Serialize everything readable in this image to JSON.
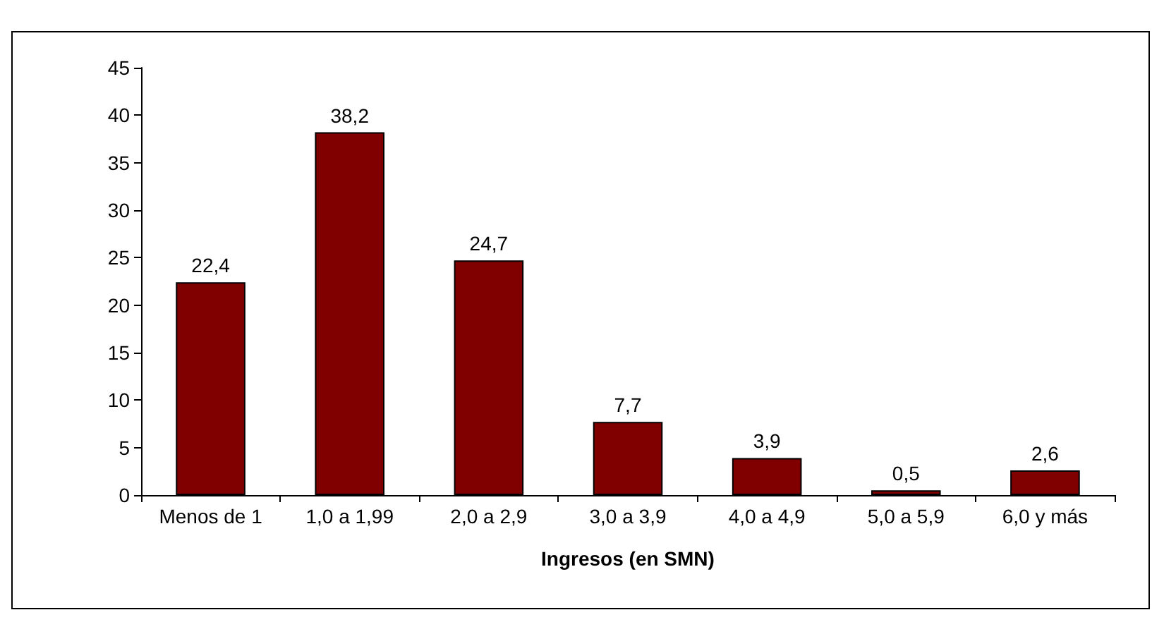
{
  "chart_data": {
    "type": "bar",
    "xlabel": "Ingresos (en SMN)",
    "categories": [
      "Menos de 1",
      "1,0 a 1,99",
      "2,0 a 2,9",
      "3,0 a 3,9",
      "4,0 a 4,9",
      "5,0 a 5,9",
      "6,0 y más"
    ],
    "values": [
      22.4,
      38.2,
      24.7,
      7.7,
      3.9,
      0.5,
      2.6
    ],
    "value_labels": [
      "22,4",
      "38,2",
      "24,7",
      "7,7",
      "3,9",
      "0,5",
      "2,6"
    ],
    "color": "#800000",
    "ylim": [
      0,
      45
    ],
    "yticks": [
      0,
      5,
      10,
      15,
      20,
      25,
      30,
      35,
      40,
      45
    ],
    "grid": false
  }
}
